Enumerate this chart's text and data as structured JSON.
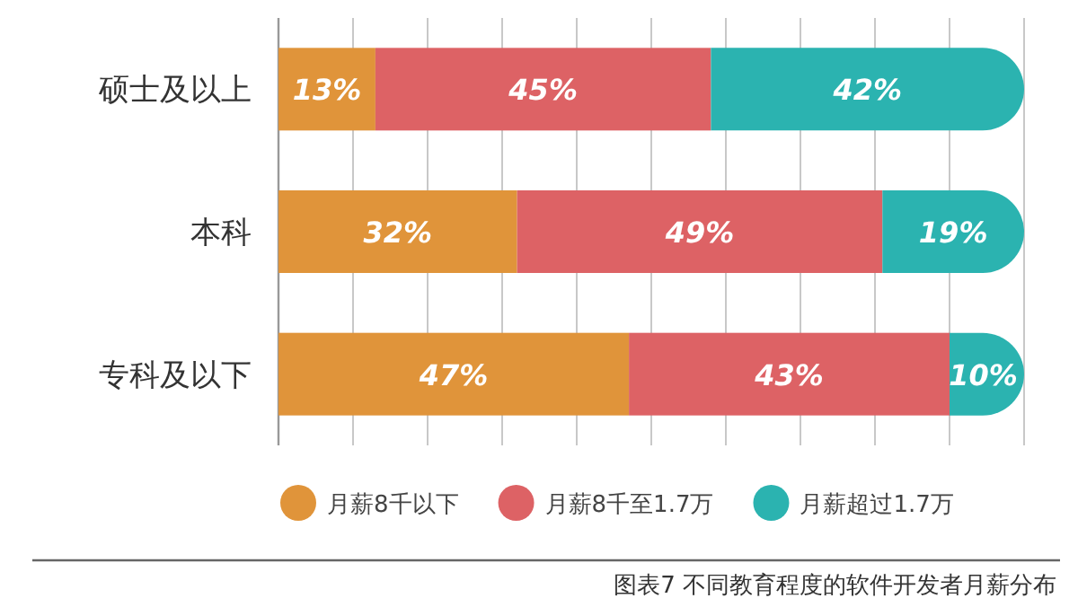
{
  "chart_data": {
    "type": "bar",
    "orientation": "horizontal",
    "stacked": true,
    "categories": [
      "硕士及以上",
      "本科",
      "专科及以下"
    ],
    "series": [
      {
        "name": "月薪8千以下",
        "color": "#e0943a",
        "values": [
          13,
          32,
          47
        ],
        "value_labels": [
          "13%",
          "32%",
          "47%"
        ]
      },
      {
        "name": "月薪8千至1.7万",
        "color": "#dd6265",
        "values": [
          45,
          49,
          43
        ],
        "value_labels": [
          "45%",
          "49%",
          "43%"
        ]
      },
      {
        "name": "月薪超过1.7万",
        "color": "#2bb3b0",
        "values": [
          42,
          19,
          10
        ],
        "value_labels": [
          "42%",
          "19%",
          "10%"
        ]
      }
    ],
    "xlim": [
      0,
      100
    ],
    "xticks": [
      {
        "value": 0,
        "label": null
      },
      {
        "value": 10,
        "label": null
      },
      {
        "value": 20,
        "label": null
      },
      {
        "value": 30,
        "label": null
      },
      {
        "value": 40,
        "label": null
      },
      {
        "value": 50,
        "label": null
      },
      {
        "value": 60,
        "label": null
      },
      {
        "value": 70,
        "label": null
      },
      {
        "value": 80,
        "label": null
      },
      {
        "value": 90,
        "label": null
      },
      {
        "value": 100,
        "label": null
      }
    ],
    "tick_labels": "y",
    "grid": "x",
    "legend": "bottom",
    "annotations": [
      "图表7 不同教育程度的软件开发者月薪分布"
    ]
  }
}
